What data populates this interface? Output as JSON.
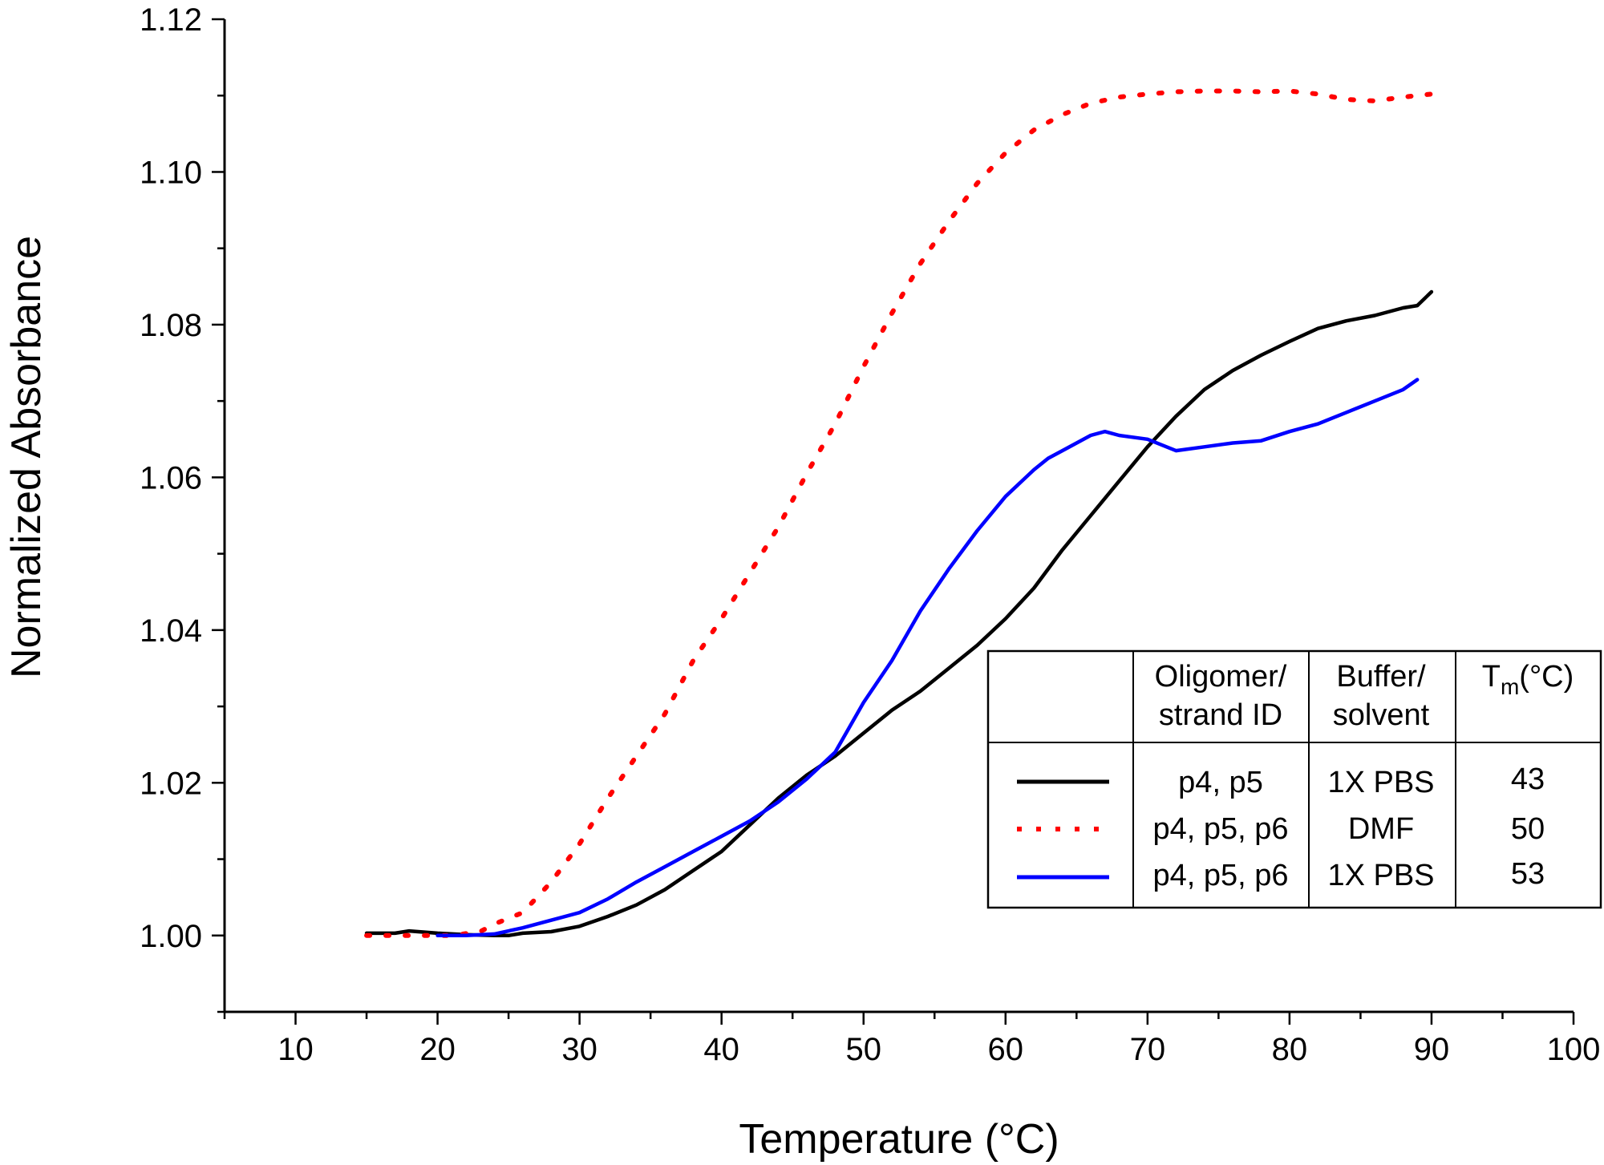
{
  "chart_data": {
    "type": "line",
    "title": "",
    "xlabel": "Temperature (°C)",
    "ylabel": "Normalized Absorbance",
    "xlim": [
      5,
      100
    ],
    "ylim": [
      0.99,
      1.12
    ],
    "x_ticks": [
      10,
      20,
      30,
      40,
      50,
      60,
      70,
      80,
      90,
      100
    ],
    "y_ticks": [
      1.0,
      1.02,
      1.04,
      1.06,
      1.08,
      1.1,
      1.12
    ],
    "x_tick_labels": [
      "10",
      "20",
      "30",
      "40",
      "50",
      "60",
      "70",
      "80",
      "90",
      "100"
    ],
    "y_tick_labels": [
      "1.00",
      "1.02",
      "1.04",
      "1.06",
      "1.08",
      "1.10",
      "1.12"
    ],
    "grid": false,
    "series": [
      {
        "name": "p4, p5 / 1X PBS",
        "color": "#000000",
        "style": "solid",
        "x": [
          15,
          17,
          18,
          20,
          22,
          24,
          25,
          26,
          28,
          30,
          32,
          34,
          36,
          38,
          40,
          42,
          44,
          46,
          48,
          50,
          52,
          54,
          56,
          58,
          60,
          62,
          64,
          66,
          68,
          70,
          72,
          74,
          76,
          78,
          80,
          82,
          84,
          86,
          88,
          89,
          90
        ],
        "y": [
          1.0003,
          1.0003,
          1.0006,
          1.0003,
          1.0001,
          1.0,
          1.0,
          1.0003,
          1.0005,
          1.0012,
          1.0025,
          1.004,
          1.006,
          1.0085,
          1.011,
          1.0145,
          1.018,
          1.021,
          1.0235,
          1.0265,
          1.0295,
          1.032,
          1.035,
          1.038,
          1.0415,
          1.0455,
          1.0505,
          1.055,
          1.0595,
          1.064,
          1.068,
          1.0715,
          1.074,
          1.076,
          1.0778,
          1.0795,
          1.0805,
          1.0812,
          1.0822,
          1.0825,
          1.0843
        ]
      },
      {
        "name": "p4, p5, p6 / DMF",
        "color": "#ff0000",
        "style": "dotted",
        "x": [
          15,
          17,
          19,
          21,
          23,
          24,
          26,
          28,
          30,
          32,
          34,
          36,
          38,
          40,
          42,
          44,
          46,
          48,
          50,
          52,
          54,
          56,
          58,
          60,
          62,
          64,
          66,
          68,
          70,
          72,
          74,
          76,
          78,
          80,
          82,
          84,
          86,
          88,
          90,
          91
        ],
        "y": [
          1.0,
          1.0,
          1.0,
          1.0,
          1.0005,
          1.0015,
          1.003,
          1.007,
          1.012,
          1.018,
          1.0235,
          1.029,
          1.036,
          1.0415,
          1.0475,
          1.0535,
          1.0605,
          1.067,
          1.0745,
          1.0815,
          1.088,
          1.0935,
          1.0985,
          1.1025,
          1.1055,
          1.1075,
          1.109,
          1.1098,
          1.1102,
          1.1105,
          1.1106,
          1.1106,
          1.1105,
          1.1106,
          1.1102,
          1.1095,
          1.1093,
          1.1098,
          1.1102,
          1.1098
        ]
      },
      {
        "name": "p4, p5, p6 / 1X PBS",
        "color": "#0000ff",
        "style": "solid",
        "x": [
          20,
          22,
          24,
          26,
          28,
          30,
          32,
          34,
          36,
          38,
          40,
          42,
          44,
          46,
          48,
          50,
          52,
          54,
          56,
          58,
          60,
          62,
          63,
          64,
          66,
          67,
          68,
          70,
          72,
          74,
          76,
          78,
          80,
          82,
          84,
          86,
          88,
          89
        ],
        "y": [
          1.0,
          1.0,
          1.0002,
          1.001,
          1.002,
          1.003,
          1.0048,
          1.007,
          1.009,
          1.011,
          1.013,
          1.015,
          1.0175,
          1.0205,
          1.024,
          1.0305,
          1.036,
          1.0425,
          1.048,
          1.053,
          1.0575,
          1.061,
          1.0625,
          1.0635,
          1.0655,
          1.066,
          1.0655,
          1.065,
          1.0635,
          1.064,
          1.0645,
          1.0648,
          1.066,
          1.067,
          1.0685,
          1.07,
          1.0715,
          1.0728
        ]
      }
    ],
    "legend": {
      "placement": "bottom-right",
      "headers": {
        "oligomer": [
          "Oligomer/",
          "strand ID"
        ],
        "buffer": [
          "Buffer/",
          "solvent"
        ],
        "tm_main": "T",
        "tm_sub": "m",
        "tm_unit": "(°C)"
      },
      "rows": [
        {
          "oligomer": "p4, p5",
          "buffer": "1X PBS",
          "tm": "43"
        },
        {
          "oligomer": "p4, p5, p6",
          "buffer": "DMF",
          "tm": "50"
        },
        {
          "oligomer": "p4, p5, p6",
          "buffer": "1X PBS",
          "tm": "53"
        }
      ]
    }
  }
}
